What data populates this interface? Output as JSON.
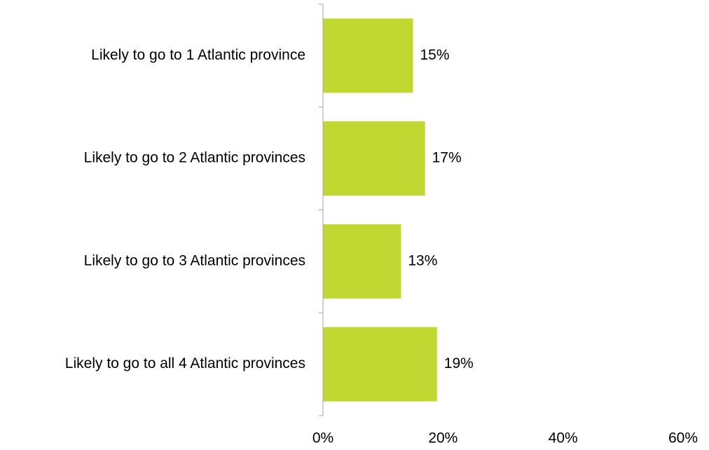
{
  "chart_data": {
    "type": "bar",
    "orientation": "horizontal",
    "categories": [
      "Likely to go to 1 Atlantic province",
      "Likely to go to 2 Atlantic provinces",
      "Likely to go to 3 Atlantic provinces",
      "Likely to go to all 4 Atlantic provinces"
    ],
    "values": [
      15,
      17,
      13,
      19
    ],
    "data_labels": [
      "15%",
      "17%",
      "13%",
      "19%"
    ],
    "x_ticks": [
      0,
      20,
      40,
      60
    ],
    "x_tick_labels": [
      "0%",
      "20%",
      "40%",
      "60%"
    ],
    "xlim": [
      0,
      60
    ],
    "grid": false,
    "legend": "none",
    "bar_color": "#c0d831",
    "axis_color": "#a6a6a6"
  }
}
